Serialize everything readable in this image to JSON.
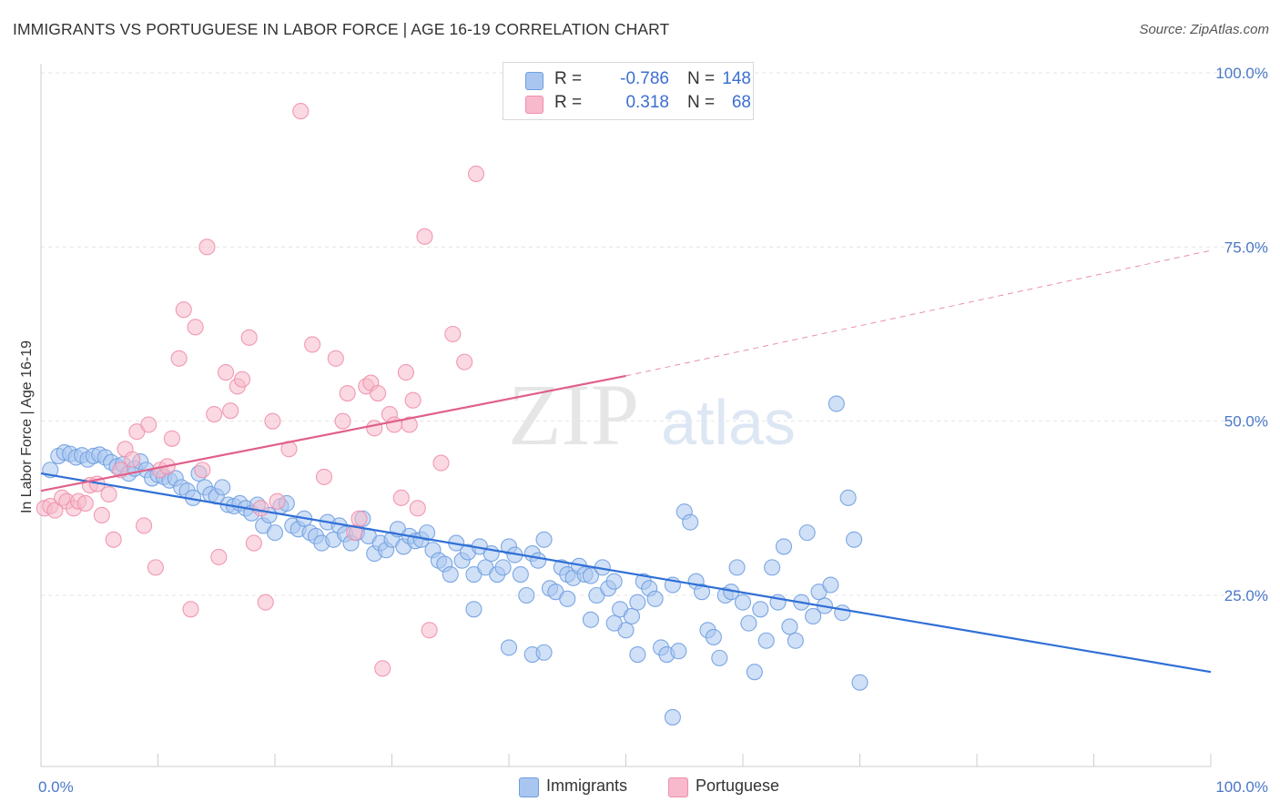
{
  "header": {
    "title": "IMMIGRANTS VS PORTUGUESE IN LABOR FORCE | AGE 16-19 CORRELATION CHART",
    "source": "Source: ZipAtlas.com"
  },
  "watermark": {
    "zip": "ZIP",
    "atlas": "atlas"
  },
  "legend_top": {
    "rows": [
      {
        "swatch_color": "#a9c6f0",
        "swatch_border": "#6f9ee0",
        "r_label": "R =",
        "r_value": "-0.786",
        "n_label": "N =",
        "n_value": "148"
      },
      {
        "swatch_color": "#f7b9cb",
        "swatch_border": "#ee8fab",
        "r_label": "R =",
        "r_value": "0.318",
        "n_label": "N =",
        "n_value": "68"
      }
    ]
  },
  "legend_bottom": {
    "items": [
      {
        "label": "Immigrants",
        "color": "#a9c6f0",
        "border": "#6f9ee0"
      },
      {
        "label": "Portuguese",
        "color": "#f7b9cb",
        "border": "#ee8fab"
      }
    ]
  },
  "chart_data": {
    "type": "scatter",
    "title": "IMMIGRANTS VS PORTUGUESE IN LABOR FORCE | AGE 16-19 CORRELATION CHART",
    "xlabel": "",
    "ylabel": "In Labor Force | Age 16-19",
    "xlim": [
      0,
      100
    ],
    "ylim": [
      0,
      105
    ],
    "x_tick_labels": [
      "0.0%",
      "100.0%"
    ],
    "y_ticks": [
      25,
      50,
      75,
      100
    ],
    "y_tick_labels": [
      "25.0%",
      "50.0%",
      "75.0%",
      "100.0%"
    ],
    "grid": "horizontal dashed",
    "legend_placement": "top-center and bottom-center",
    "colors": {
      "immigrants": "#6f9ee0",
      "immigrants_fill": "#a9c6f0",
      "immigrants_line": "#2f6fd6",
      "portuguese": "#ee8fab",
      "portuguese_fill": "#f7b9cb",
      "portuguese_line": "#e0608a"
    },
    "series": [
      {
        "name": "Immigrants",
        "trend": {
          "x": [
            0,
            100
          ],
          "y": [
            42.5,
            14.0
          ],
          "style": "solid"
        },
        "points": [
          [
            0.8,
            43
          ],
          [
            1.5,
            45
          ],
          [
            2,
            45.5
          ],
          [
            2.5,
            45.3
          ],
          [
            3,
            44.8
          ],
          [
            3.5,
            45.1
          ],
          [
            4,
            44.5
          ],
          [
            4.5,
            45
          ],
          [
            5,
            45.2
          ],
          [
            5.5,
            44.8
          ],
          [
            6,
            44.1
          ],
          [
            6.5,
            43.5
          ],
          [
            7,
            43.8
          ],
          [
            7.5,
            42.5
          ],
          [
            8,
            43.2
          ],
          [
            8.5,
            44.2
          ],
          [
            9,
            43
          ],
          [
            9.5,
            41.8
          ],
          [
            10,
            42.3
          ],
          [
            10.5,
            42
          ],
          [
            11,
            41.5
          ],
          [
            11.5,
            41.8
          ],
          [
            12,
            40.5
          ],
          [
            12.5,
            40
          ],
          [
            13,
            39
          ],
          [
            13.5,
            42.5
          ],
          [
            14,
            40.5
          ],
          [
            14.5,
            39.5
          ],
          [
            15,
            39.2
          ],
          [
            15.5,
            40.5
          ],
          [
            16,
            38
          ],
          [
            16.5,
            37.8
          ],
          [
            17,
            38.2
          ],
          [
            17.5,
            37.5
          ],
          [
            18,
            36.8
          ],
          [
            18.5,
            38
          ],
          [
            19,
            35
          ],
          [
            19.5,
            36.5
          ],
          [
            20,
            34
          ],
          [
            20.5,
            37.8
          ],
          [
            21,
            38.2
          ],
          [
            21.5,
            35
          ],
          [
            22,
            34.5
          ],
          [
            22.5,
            36
          ],
          [
            23,
            34
          ],
          [
            23.5,
            33.5
          ],
          [
            24,
            32.5
          ],
          [
            24.5,
            35.5
          ],
          [
            25,
            33
          ],
          [
            25.5,
            35
          ],
          [
            26,
            33.8
          ],
          [
            26.5,
            32.5
          ],
          [
            27,
            34
          ],
          [
            27.5,
            36
          ],
          [
            28,
            33.5
          ],
          [
            28.5,
            31
          ],
          [
            29,
            32.5
          ],
          [
            29.5,
            31.5
          ],
          [
            30,
            33
          ],
          [
            30.5,
            34.5
          ],
          [
            31,
            32
          ],
          [
            31.5,
            33.5
          ],
          [
            32,
            32.8
          ],
          [
            32.5,
            33
          ],
          [
            33,
            34
          ],
          [
            33.5,
            31.5
          ],
          [
            34,
            30
          ],
          [
            34.5,
            29.5
          ],
          [
            35,
            28
          ],
          [
            35.5,
            32.5
          ],
          [
            36,
            30
          ],
          [
            36.5,
            31.2
          ],
          [
            37,
            28
          ],
          [
            37.5,
            32
          ],
          [
            38,
            29
          ],
          [
            38.5,
            31
          ],
          [
            39,
            28
          ],
          [
            39.5,
            29
          ],
          [
            40,
            32
          ],
          [
            40.5,
            30.8
          ],
          [
            41,
            28
          ],
          [
            41.5,
            25
          ],
          [
            42,
            31
          ],
          [
            42.5,
            30
          ],
          [
            43,
            33
          ],
          [
            43.5,
            26
          ],
          [
            44,
            25.5
          ],
          [
            44.5,
            29
          ],
          [
            45,
            28
          ],
          [
            45.5,
            27.5
          ],
          [
            46,
            29.2
          ],
          [
            46.5,
            28
          ],
          [
            47,
            27.8
          ],
          [
            47.5,
            25
          ],
          [
            48,
            29
          ],
          [
            48.5,
            26
          ],
          [
            49,
            27
          ],
          [
            49.5,
            23
          ],
          [
            50,
            20
          ],
          [
            50.5,
            22
          ],
          [
            51,
            24
          ],
          [
            51.5,
            27
          ],
          [
            52,
            26
          ],
          [
            52.5,
            24.5
          ],
          [
            53,
            17.5
          ],
          [
            53.5,
            16.5
          ],
          [
            54,
            26.5
          ],
          [
            54.5,
            17
          ],
          [
            55,
            37
          ],
          [
            55.5,
            35.5
          ],
          [
            56,
            27
          ],
          [
            56.5,
            25.5
          ],
          [
            57,
            20
          ],
          [
            57.5,
            19
          ],
          [
            58,
            16
          ],
          [
            58.5,
            25
          ],
          [
            59,
            25.5
          ],
          [
            59.5,
            29
          ],
          [
            60,
            24
          ],
          [
            60.5,
            21
          ],
          [
            61,
            14
          ],
          [
            61.5,
            23
          ],
          [
            62,
            18.5
          ],
          [
            62.5,
            29
          ],
          [
            63,
            24
          ],
          [
            63.5,
            32
          ],
          [
            64,
            20.5
          ],
          [
            64.5,
            18.5
          ],
          [
            65,
            24
          ],
          [
            65.5,
            34
          ],
          [
            66,
            22
          ],
          [
            66.5,
            25.5
          ],
          [
            67,
            23.5
          ],
          [
            67.5,
            26.5
          ],
          [
            68,
            52.5
          ],
          [
            68.5,
            22.5
          ],
          [
            69,
            39
          ],
          [
            69.5,
            33
          ],
          [
            70,
            12.5
          ],
          [
            54,
            7.5
          ],
          [
            37,
            23
          ],
          [
            40,
            17.5
          ],
          [
            42,
            16.5
          ],
          [
            43,
            16.8
          ],
          [
            49,
            21
          ],
          [
            51,
            16.5
          ],
          [
            45,
            24.5
          ],
          [
            47,
            21.5
          ]
        ]
      },
      {
        "name": "Portuguese",
        "trend": {
          "x": [
            0,
            50
          ],
          "y": [
            40.0,
            56.5
          ],
          "style": "solid",
          "extension": {
            "x": [
              50,
              100
            ],
            "y": [
              56.5,
              74.5
            ],
            "style": "dashed"
          }
        },
        "points": [
          [
            0.3,
            37.5
          ],
          [
            0.8,
            37.8
          ],
          [
            1.2,
            37.2
          ],
          [
            1.8,
            39
          ],
          [
            2.2,
            38.5
          ],
          [
            2.8,
            37.5
          ],
          [
            3.2,
            38.5
          ],
          [
            3.8,
            38.2
          ],
          [
            4.2,
            40.8
          ],
          [
            4.8,
            41
          ],
          [
            5.2,
            36.5
          ],
          [
            5.8,
            39.5
          ],
          [
            6.2,
            33
          ],
          [
            6.8,
            43
          ],
          [
            7.2,
            46
          ],
          [
            7.8,
            44.5
          ],
          [
            8.2,
            48.5
          ],
          [
            8.8,
            35
          ],
          [
            9.2,
            49.5
          ],
          [
            9.8,
            29
          ],
          [
            10.2,
            43
          ],
          [
            10.8,
            43.5
          ],
          [
            11.2,
            47.5
          ],
          [
            11.8,
            59
          ],
          [
            12.2,
            66
          ],
          [
            12.8,
            23
          ],
          [
            13.2,
            63.5
          ],
          [
            13.8,
            43
          ],
          [
            14.2,
            75
          ],
          [
            14.8,
            51
          ],
          [
            15.2,
            30.5
          ],
          [
            15.8,
            57
          ],
          [
            16.2,
            51.5
          ],
          [
            16.8,
            55
          ],
          [
            17.2,
            56
          ],
          [
            17.8,
            62
          ],
          [
            18.2,
            32.5
          ],
          [
            18.8,
            37.5
          ],
          [
            19.2,
            24
          ],
          [
            19.8,
            50
          ],
          [
            20.2,
            38.5
          ],
          [
            21.2,
            46
          ],
          [
            22.2,
            94.5
          ],
          [
            23.2,
            61
          ],
          [
            24.2,
            42
          ],
          [
            25.2,
            59
          ],
          [
            26.2,
            54
          ],
          [
            26.8,
            34
          ],
          [
            27.2,
            36
          ],
          [
            27.8,
            55
          ],
          [
            28.2,
            55.5
          ],
          [
            28.8,
            54
          ],
          [
            29.2,
            14.5
          ],
          [
            29.8,
            51
          ],
          [
            30.2,
            49.5
          ],
          [
            30.8,
            39
          ],
          [
            31.2,
            57
          ],
          [
            31.8,
            53
          ],
          [
            32.2,
            37.5
          ],
          [
            32.8,
            76.5
          ],
          [
            33.2,
            20
          ],
          [
            34.2,
            44
          ],
          [
            35.2,
            62.5
          ],
          [
            36.2,
            58.5
          ],
          [
            37.2,
            85.5
          ],
          [
            25.8,
            50
          ],
          [
            28.5,
            49
          ],
          [
            31.5,
            49.5
          ]
        ]
      }
    ]
  }
}
